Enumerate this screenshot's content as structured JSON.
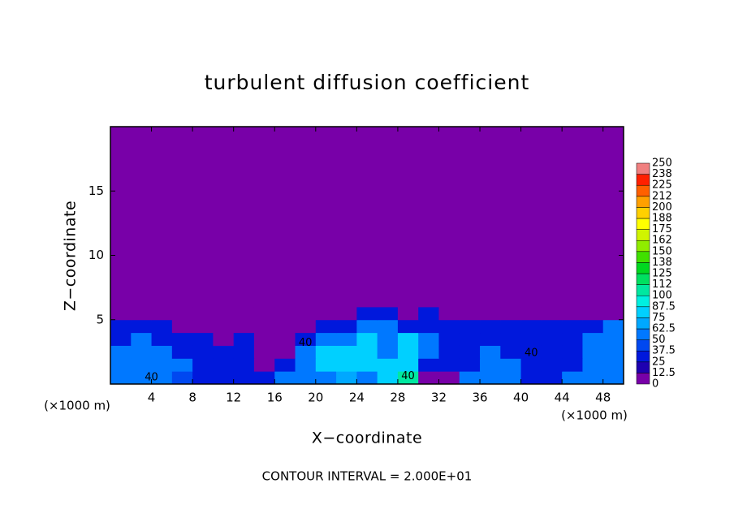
{
  "chart_data": {
    "type": "contour",
    "title": "turbulent diffusion coefficient",
    "x_label": "X−coordinate",
    "y_label": "Z−coordinate",
    "x_unit": "(×1000 m)",
    "x_unit_right": "(×1000 m)",
    "footer": "CONTOUR INTERVAL = 2.000E+01",
    "xlim": [
      0,
      50
    ],
    "ylim": [
      0,
      20
    ],
    "xticks": [
      4,
      8,
      12,
      16,
      20,
      24,
      28,
      32,
      36,
      40,
      44,
      48
    ],
    "yticks": [
      5,
      10,
      15
    ],
    "contour_labels": [
      "40",
      "40",
      "40",
      "40"
    ],
    "x": [
      1,
      3,
      5,
      7,
      9,
      11,
      13,
      15,
      17,
      19,
      21,
      23,
      25,
      27,
      29,
      31,
      33,
      35,
      37,
      39,
      41,
      43,
      45,
      47,
      49
    ],
    "y": [
      0.5,
      1.5,
      2.5,
      3.5,
      4.5,
      5.5,
      6.5
    ],
    "z": [
      [
        50,
        60,
        50,
        45,
        30,
        30,
        25,
        30,
        60,
        62,
        62,
        65,
        62,
        75,
        100,
        12,
        12,
        50,
        62,
        50,
        37,
        37,
        50,
        62,
        62
      ],
      [
        62,
        62,
        50,
        50,
        30,
        25,
        25,
        12,
        25,
        62,
        75,
        75,
        75,
        75,
        87,
        25,
        25,
        37,
        62,
        50,
        37,
        37,
        37,
        62,
        62
      ],
      [
        50,
        62,
        62,
        37,
        25,
        25,
        25,
        12,
        12,
        50,
        75,
        75,
        75,
        62,
        87,
        50,
        37,
        37,
        50,
        37,
        37,
        37,
        37,
        50,
        62
      ],
      [
        37,
        50,
        37,
        25,
        25,
        12,
        25,
        12,
        12,
        37,
        62,
        62,
        75,
        62,
        75,
        50,
        37,
        25,
        37,
        37,
        37,
        37,
        37,
        50,
        62
      ],
      [
        25,
        37,
        25,
        12,
        12,
        0,
        12,
        12,
        0,
        12,
        25,
        37,
        50,
        50,
        37,
        37,
        37,
        25,
        25,
        37,
        25,
        37,
        37,
        37,
        50
      ],
      [
        0,
        0,
        0,
        0,
        0,
        0,
        0,
        0,
        0,
        0,
        0,
        12,
        25,
        25,
        12,
        25,
        12,
        0,
        0,
        0,
        0,
        0,
        12,
        12,
        12
      ],
      [
        0,
        0,
        0,
        0,
        0,
        0,
        0,
        0,
        0,
        0,
        0,
        0,
        12,
        0,
        0,
        0,
        0,
        0,
        0,
        0,
        0,
        0,
        0,
        0,
        0
      ]
    ],
    "levels": [
      0,
      12.5,
      25,
      37.5,
      50,
      62.5,
      75,
      87.5,
      100,
      {
        "value": 112.5,
        "label": "112"
      },
      125,
      {
        "value": 137.5,
        "label": "138"
      },
      150,
      {
        "value": 162.5,
        "label": "162"
      },
      175,
      {
        "value": 187.5,
        "label": "188"
      },
      200,
      {
        "value": 212.5,
        "label": "212"
      },
      225,
      {
        "value": 237.5,
        "label": "238"
      },
      250
    ],
    "colors": [
      "#7800a8",
      "#1e00b0",
      "#0018dc",
      "#0048f0",
      "#0078ff",
      "#00a8ff",
      "#00d0ff",
      "#00f0e0",
      "#00e8a0",
      "#00e060",
      "#00d820",
      "#40e000",
      "#90ec00",
      "#d0f400",
      "#ffff00",
      "#ffd000",
      "#ffa000",
      "#ff6000",
      "#ff2000",
      "#f08080"
    ]
  }
}
